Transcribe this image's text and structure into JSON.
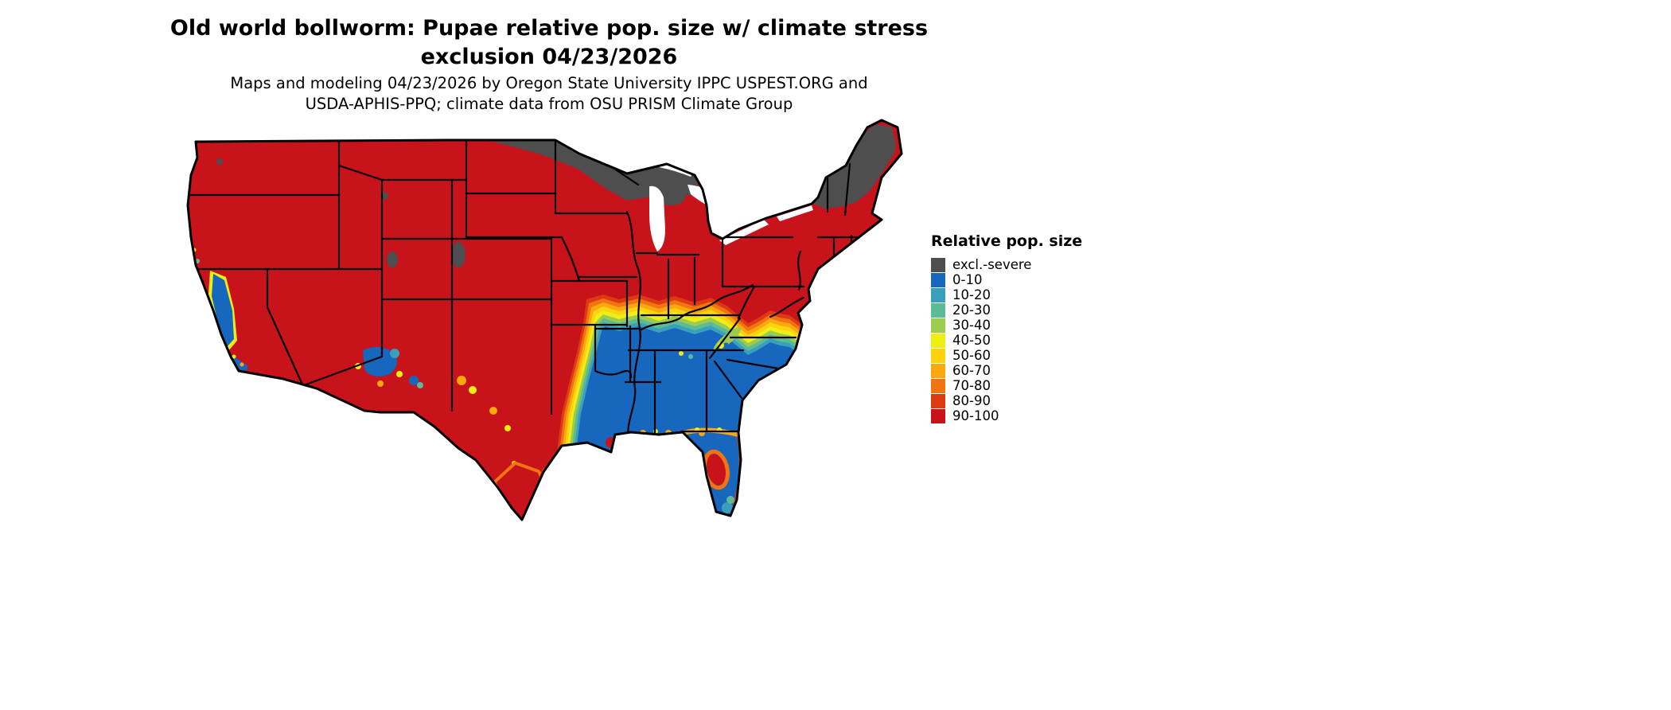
{
  "title": {
    "line1": "Old world bollworm: Pupae relative pop. size w/ climate stress",
    "line2": "exclusion 04/23/2026"
  },
  "subtitle": {
    "line1": "Maps and modeling 04/23/2026 by Oregon State University IPPC USPEST.ORG and",
    "line2": "USDA-APHIS-PPQ; climate data from OSU PRISM Climate Group"
  },
  "legend": {
    "title": "Relative pop. size",
    "items": [
      {
        "label": "excl.-severe",
        "color": "#4e4e4e"
      },
      {
        "label": "0-10",
        "color": "#1667bd"
      },
      {
        "label": "10-20",
        "color": "#3a9fba"
      },
      {
        "label": "20-30",
        "color": "#5bbb96"
      },
      {
        "label": "30-40",
        "color": "#9ccb4f"
      },
      {
        "label": "40-50",
        "color": "#eef014"
      },
      {
        "label": "50-60",
        "color": "#fdd20e"
      },
      {
        "label": "60-70",
        "color": "#f9a80e"
      },
      {
        "label": "70-80",
        "color": "#f0740f"
      },
      {
        "label": "80-90",
        "color": "#de3a12"
      },
      {
        "label": "90-100",
        "color": "#c9131b"
      }
    ]
  },
  "map": {
    "region": "Continental United States",
    "outline_color": "#000000",
    "water_color": "#ffffff"
  }
}
